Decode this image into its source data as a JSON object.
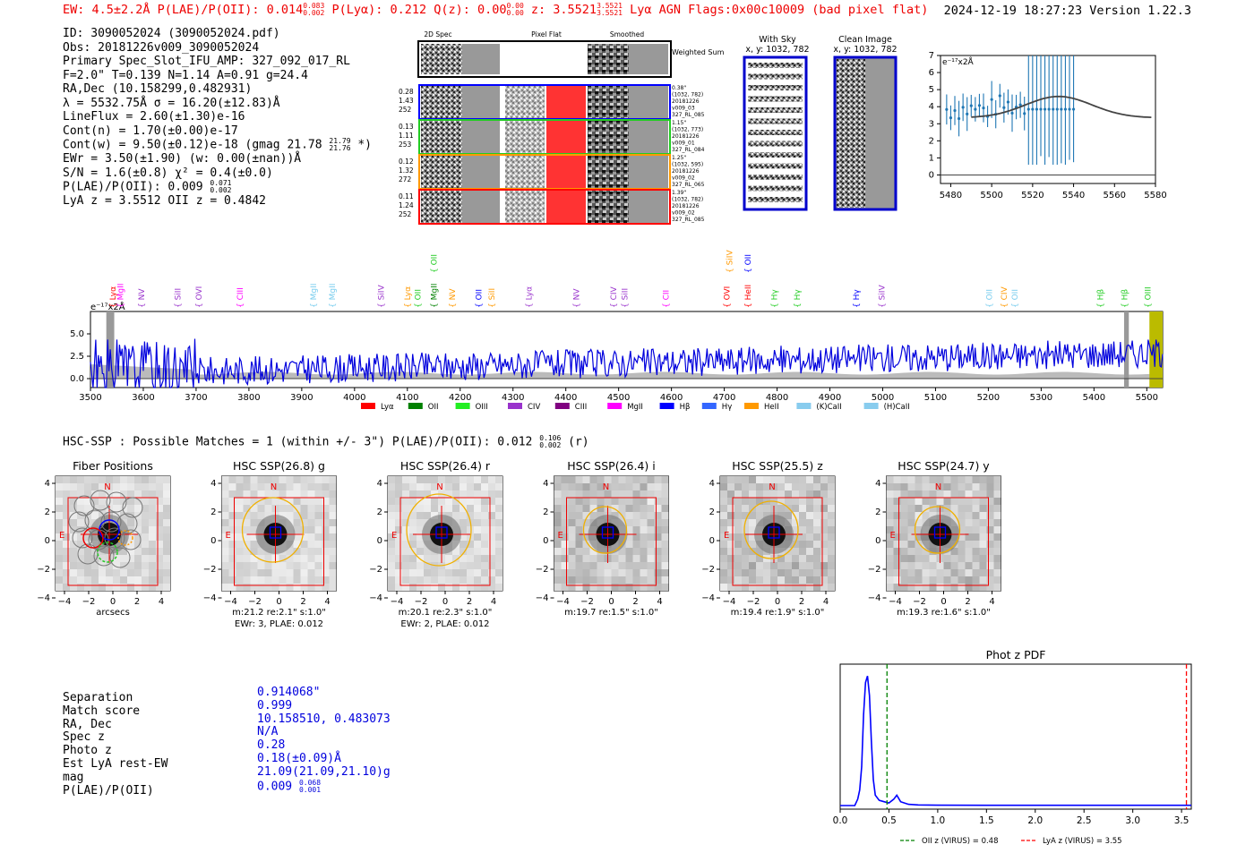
{
  "header": {
    "left": "EW: 4.5±2.2Å  P(LAE)/P(OII): 0.014",
    "left_sup_hi": "0.083",
    "left_sup_lo": "0.002",
    "left2": "  P(Lyα): 0.212  Q(z): 0.00",
    "qz_hi": "0.00",
    "qz_lo": "0.00",
    "left3": "  z: 3.5521",
    "z_hi": "3.5521",
    "z_lo": "3.5521",
    "left4": " Lyα  AGN  Flags:0x00c10009  (bad pixel flat)",
    "right": "2024-12-19 18:27:23  Version 1.22.3"
  },
  "info": {
    "id": "ID: 3090052024 (3090052024.pdf)",
    "obs": "Obs: 20181226v009_3090052024",
    "primary": "Primary Spec_Slot_IFU_AMP: 327_092_017_RL",
    "fparams": "F=2.0\"  T=0.139  N=1.14  A=0.91  g=24.4",
    "radec": "RA,Dec (10.158299,0.482931)",
    "lambda": "λ = 5532.75Å  σ = 16.20(±12.83)Å",
    "lineflux": "LineFlux = 2.60(±1.30)e-16",
    "contn": "Cont(n) = 1.70(±0.00)e-17",
    "contw": "Cont(w) = 9.50(±0.12)e-18 (gmag 21.78",
    "contw_hi": "21.79",
    "contw_lo": "21.76",
    "contw_end": " *)",
    "ewr": "EWr = 3.50(±1.90) (w: 0.00(±nan))Å",
    "sn": "S/N = 1.6(±0.8)  χ² = 0.4(±0.0)",
    "plae": "P(LAE)/P(OII): 0.009",
    "plae_hi": "0.071",
    "plae_lo": "0.002",
    "lyaz": "LyA z = 3.5512  OII z = 0.4842"
  },
  "cutouts": {
    "headers": [
      "2D Spec",
      "Pixel Flat",
      "Smoothed"
    ],
    "weighted_label": "Weighted Sum",
    "rows": [
      {
        "vals": [
          "0.28",
          "1.43",
          "252"
        ],
        "meta": [
          "0.38\"",
          "(1032, 782)",
          "20181226",
          "v009_03",
          "327_RL_085"
        ],
        "color": "#0000ff"
      },
      {
        "vals": [
          "0.13",
          "1.11",
          "253"
        ],
        "meta": [
          "1.15\"",
          "(1032, 773)",
          "20181226",
          "v009_01",
          "327_RL_084"
        ],
        "color": "#22cc22"
      },
      {
        "vals": [
          "0.12",
          "1.32",
          "272"
        ],
        "meta": [
          "1.25\"",
          "(1032, 595)",
          "20181226",
          "v009_02",
          "327_RL_065"
        ],
        "color": "#ff9900"
      },
      {
        "vals": [
          "0.11",
          "1.24",
          "252"
        ],
        "meta": [
          "1.39\"",
          "(1032, 782)",
          "20181226",
          "v009_02",
          "327_RL_085"
        ],
        "color": "#ff0000"
      }
    ],
    "with_sky": "With Sky",
    "with_sky_xy": "x, y: 1032, 782",
    "clean": "Clean Image",
    "clean_xy": "x, y: 1032, 782"
  },
  "zoom_chart": {
    "unit": "e⁻¹⁷x2Å",
    "x_ticks": [
      "5480",
      "5500",
      "5520",
      "5540",
      "5560",
      "5580"
    ],
    "y_ticks": [
      "0",
      "1",
      "2",
      "3",
      "4",
      "5",
      "6",
      "7"
    ]
  },
  "full_spectrum": {
    "unit": "e⁻¹⁷x2Å",
    "x_ticks": [
      "3500",
      "3600",
      "3700",
      "3800",
      "3900",
      "4000",
      "4100",
      "4200",
      "4300",
      "4400",
      "4500",
      "4600",
      "4700",
      "4800",
      "4900",
      "5000",
      "5100",
      "5200",
      "5300",
      "5400",
      "5500"
    ],
    "y_ticks": [
      "0.0",
      "2.5",
      "5.0"
    ],
    "line_labels": [
      {
        "t": "Lyα",
        "x": 3542,
        "c": "#ff0000"
      },
      {
        "t": "MgII",
        "x": 3557,
        "c": "#ff00ff"
      },
      {
        "t": "NV",
        "x": 3597,
        "c": "#9933cc"
      },
      {
        "t": "SiII",
        "x": 3665,
        "c": "#9933cc"
      },
      {
        "t": "OVI",
        "x": 3705,
        "c": "#9933cc"
      },
      {
        "t": "CIII",
        "x": 3783,
        "c": "#ff00ff"
      },
      {
        "t": "MgII",
        "x": 3922,
        "c": "#77ccee"
      },
      {
        "t": "MgII",
        "x": 3958,
        "c": "#77ccee"
      },
      {
        "t": "SiIV",
        "x": 4050,
        "c": "#9933cc"
      },
      {
        "t": "Lyα",
        "x": 4100,
        "c": "#ff9900"
      },
      {
        "t": "OII",
        "x": 4120,
        "c": "#22cc22"
      },
      {
        "t": "MgII",
        "x": 4150,
        "c": "#008000"
      },
      {
        "t": "NV",
        "x": 4185,
        "c": "#ff9900"
      },
      {
        "t": "OII",
        "x": 4235,
        "c": "#0000ff"
      },
      {
        "t": "SiII",
        "x": 4260,
        "c": "#ff9900"
      },
      {
        "t": "Lyα",
        "x": 4330,
        "c": "#9933cc"
      },
      {
        "t": "NV",
        "x": 4420,
        "c": "#9933cc"
      },
      {
        "t": "CIV",
        "x": 4490,
        "c": "#9933cc"
      },
      {
        "t": "SiII",
        "x": 4512,
        "c": "#9933cc"
      },
      {
        "t": "CII",
        "x": 4590,
        "c": "#ff00ff"
      },
      {
        "t": "OVI",
        "x": 4705,
        "c": "#ff0000"
      },
      {
        "t": "HeII",
        "x": 4745,
        "c": "#ff0000"
      },
      {
        "t": "Hγ",
        "x": 4795,
        "c": "#22cc22"
      },
      {
        "t": "Hγ",
        "x": 4838,
        "c": "#22cc22"
      },
      {
        "t": "Hγ",
        "x": 4950,
        "c": "#0000ff"
      },
      {
        "t": "SiIV",
        "x": 4998,
        "c": "#9933cc"
      },
      {
        "t": "OII",
        "x": 5202,
        "c": "#77ccee"
      },
      {
        "t": "CIV",
        "x": 5230,
        "c": "#ff9900"
      },
      {
        "t": "OII",
        "x": 5250,
        "c": "#77ccee"
      },
      {
        "t": "Hβ",
        "x": 5412,
        "c": "#22cc22"
      },
      {
        "t": "Hβ",
        "x": 5458,
        "c": "#22cc22"
      },
      {
        "t": "OIII",
        "x": 5502,
        "c": "#22cc22"
      }
    ],
    "upper_labels": [
      {
        "t": "OII",
        "x": 4150,
        "c": "#22cc22"
      },
      {
        "t": "SiIV",
        "x": 4710,
        "c": "#ff9900"
      },
      {
        "t": "OII",
        "x": 4745,
        "c": "#0000ff"
      }
    ],
    "legend": [
      {
        "t": "Lyα",
        "c": "#ff0000"
      },
      {
        "t": "OII",
        "c": "#008000"
      },
      {
        "t": "OIII",
        "c": "#22ee22"
      },
      {
        "t": "CIV",
        "c": "#9933cc"
      },
      {
        "t": "CIII",
        "c": "#800080"
      },
      {
        "t": "MgII",
        "c": "#ff00ff"
      },
      {
        "t": "Hβ",
        "c": "#0000ff"
      },
      {
        "t": "Hγ",
        "c": "#3366ff"
      },
      {
        "t": "HeII",
        "c": "#ff9900"
      },
      {
        "t": "(K)CaII",
        "c": "#88ccee"
      },
      {
        "t": "(H)CaII",
        "c": "#88ccee"
      }
    ]
  },
  "hsc": {
    "summary": "HSC-SSP : Possible Matches = 1 (within +/- 3\")  P(LAE)/P(OII): 0.012",
    "summary_hi": "0.106",
    "summary_lo": "0.002",
    "summary_end": " (r)",
    "panels": [
      {
        "title": "Fiber Positions",
        "cap1": "arcsecs",
        "cap2": ""
      },
      {
        "title": "HSC SSP(26.8) g",
        "cap1": "m:21.2  re:2.1\"  s:1.0\"",
        "cap2": "EWr: 3, PLAE: 0.012"
      },
      {
        "title": "HSC SSP(26.4) r",
        "cap1": "m:20.1  re:2.3\"  s:1.0\"",
        "cap2": "EWr: 2, PLAE: 0.012"
      },
      {
        "title": "HSC SSP(26.4) i",
        "cap1": "m:19.7  re:1.5\"  s:1.0\"",
        "cap2": ""
      },
      {
        "title": "HSC SSP(25.5) z",
        "cap1": "m:19.4  re:1.9\"  s:1.0\"",
        "cap2": ""
      },
      {
        "title": "HSC SSP(24.7) y",
        "cap1": "m:19.3  re:1.6\"  s:1.0\"",
        "cap2": ""
      }
    ],
    "ticks": [
      "−4",
      "−2",
      "0",
      "2",
      "4"
    ],
    "n_label": "N",
    "e_label": "E"
  },
  "match": {
    "labels": [
      "Separation",
      "Match score",
      "RA, Dec",
      "Spec z",
      "Photo z",
      "Est LyA rest-EW",
      "mag",
      "P(LAE)/P(OII)"
    ],
    "values": [
      "0.914068\"",
      "0.999",
      "10.158510, 0.483073",
      "N/A",
      "0.28",
      "0.18(±0.09)Å",
      "21.09(21.09,21.10)g",
      "0.009"
    ],
    "plae_hi": "0.068",
    "plae_lo": "0.001"
  },
  "chart_data": {
    "type": "line",
    "title": "Phot z PDF",
    "x_ticks": [
      "0.0",
      "0.5",
      "1.0",
      "1.5",
      "2.0",
      "2.5",
      "3.0",
      "3.5"
    ],
    "xlim": [
      0,
      3.6
    ],
    "ylim": [
      0,
      1.05
    ],
    "x": [
      0.0,
      0.15,
      0.18,
      0.2,
      0.22,
      0.24,
      0.26,
      0.28,
      0.3,
      0.32,
      0.34,
      0.36,
      0.4,
      0.45,
      0.5,
      0.55,
      0.58,
      0.62,
      0.7,
      0.8,
      1.0,
      1.5,
      2.0,
      2.5,
      3.0,
      3.5,
      3.6
    ],
    "y": [
      0.0,
      0.0,
      0.05,
      0.12,
      0.3,
      0.7,
      0.95,
      1.0,
      0.85,
      0.5,
      0.2,
      0.08,
      0.04,
      0.03,
      0.02,
      0.05,
      0.08,
      0.03,
      0.01,
      0.005,
      0.003,
      0.002,
      0.002,
      0.002,
      0.002,
      0.002,
      0.002
    ],
    "series_name": "photo z pdf",
    "vlines": [
      {
        "name": "OII z (VIRUS) = 0.48",
        "x": 0.48,
        "color": "#008000"
      },
      {
        "name": "LyA z (VIRUS) = 3.55",
        "x": 3.55,
        "color": "#ff0000"
      }
    ]
  }
}
